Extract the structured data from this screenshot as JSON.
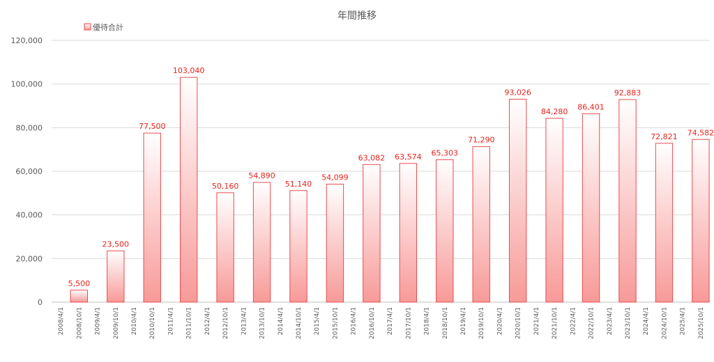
{
  "chart_data": {
    "type": "bar",
    "title": "年間推移",
    "legend": [
      "優待合計"
    ],
    "legend_position": "top-left",
    "grid": true,
    "ylim": [
      0,
      120000
    ],
    "yticks": [
      "0",
      "20,000",
      "40,000",
      "60,000",
      "80,000",
      "100,000",
      "120,000"
    ],
    "categories": [
      "2008/4/1",
      "2008/10/1",
      "2009/4/1",
      "2009/10/1",
      "2010/4/1",
      "2010/10/1",
      "2011/4/1",
      "2011/10/1",
      "2012/4/1",
      "2012/10/1",
      "2013/4/1",
      "2013/10/1",
      "2014/4/1",
      "2014/10/1",
      "2015/4/1",
      "2015/10/1",
      "2016/4/1",
      "2016/10/1",
      "2017/4/1",
      "2017/10/1",
      "2018/4/1",
      "2018/10/1",
      "2019/4/1",
      "2019/10/1",
      "2020/4/1",
      "2020/10/1",
      "2021/4/1",
      "2021/10/1",
      "2022/4/1",
      "2022/10/1",
      "2023/4/1",
      "2023/10/1",
      "2024/4/1",
      "2024/10/1",
      "2025/4/1",
      "2025/10/1"
    ],
    "series": [
      {
        "name": "優待合計",
        "color": "#f08080",
        "values": [
          null,
          5500,
          null,
          23500,
          null,
          77500,
          null,
          103040,
          null,
          50160,
          null,
          54890,
          null,
          51140,
          null,
          54099,
          null,
          63082,
          null,
          63574,
          null,
          65303,
          null,
          71290,
          null,
          93026,
          null,
          84280,
          null,
          86401,
          null,
          92883,
          null,
          72821,
          null,
          74582
        ],
        "labels": [
          "",
          "5,500",
          "",
          "23,500",
          "",
          "77,500",
          "",
          "103,040",
          "",
          "50,160",
          "",
          "54,890",
          "",
          "51,140",
          "",
          "54,099",
          "",
          "63,082",
          "",
          "63,574",
          "",
          "65,303",
          "",
          "71,290",
          "",
          "93,026",
          "",
          "84,280",
          "",
          "86,401",
          "",
          "92,883",
          "",
          "72,821",
          "",
          "74,582"
        ]
      }
    ]
  }
}
